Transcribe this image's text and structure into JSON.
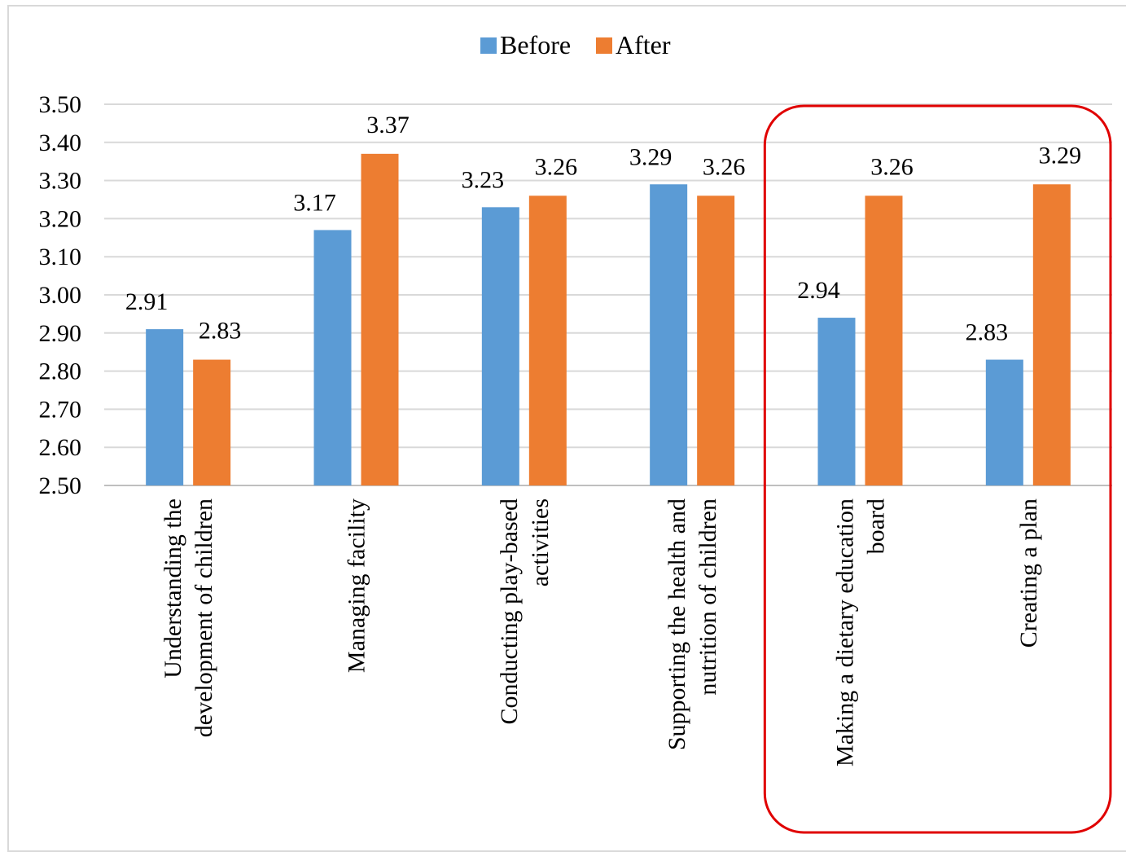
{
  "chart_data": {
    "type": "bar",
    "categories": [
      [
        "Understanding the",
        "development of children"
      ],
      [
        "Managing facility"
      ],
      [
        "Conducting play-based",
        "activities"
      ],
      [
        "Supporting the health and",
        "nutrition of children"
      ],
      [
        "Making a dietary education",
        "board"
      ],
      [
        "Creating a plan"
      ]
    ],
    "series": [
      {
        "name": "Before",
        "color": "#5b9bd5",
        "values": [
          2.91,
          3.17,
          3.23,
          3.29,
          2.94,
          2.83
        ],
        "labels": [
          "2.91",
          "3.17",
          "3.23",
          "3.29",
          "2.94",
          "2.83"
        ]
      },
      {
        "name": "After",
        "color": "#ed7d31",
        "values": [
          2.83,
          3.37,
          3.26,
          3.26,
          3.26,
          3.29
        ],
        "labels": [
          "2.83",
          "3.37",
          "3.26",
          "3.26",
          "3.26",
          "3.29"
        ]
      }
    ],
    "ylim": [
      2.5,
      3.5
    ],
    "yticks": [
      "2.50",
      "2.60",
      "2.70",
      "2.80",
      "2.90",
      "3.00",
      "3.10",
      "3.20",
      "3.30",
      "3.40",
      "3.50"
    ],
    "grid": true,
    "legend_position": "top-center",
    "highlight": {
      "categories": [
        4,
        5
      ],
      "color": "#e00000"
    }
  }
}
